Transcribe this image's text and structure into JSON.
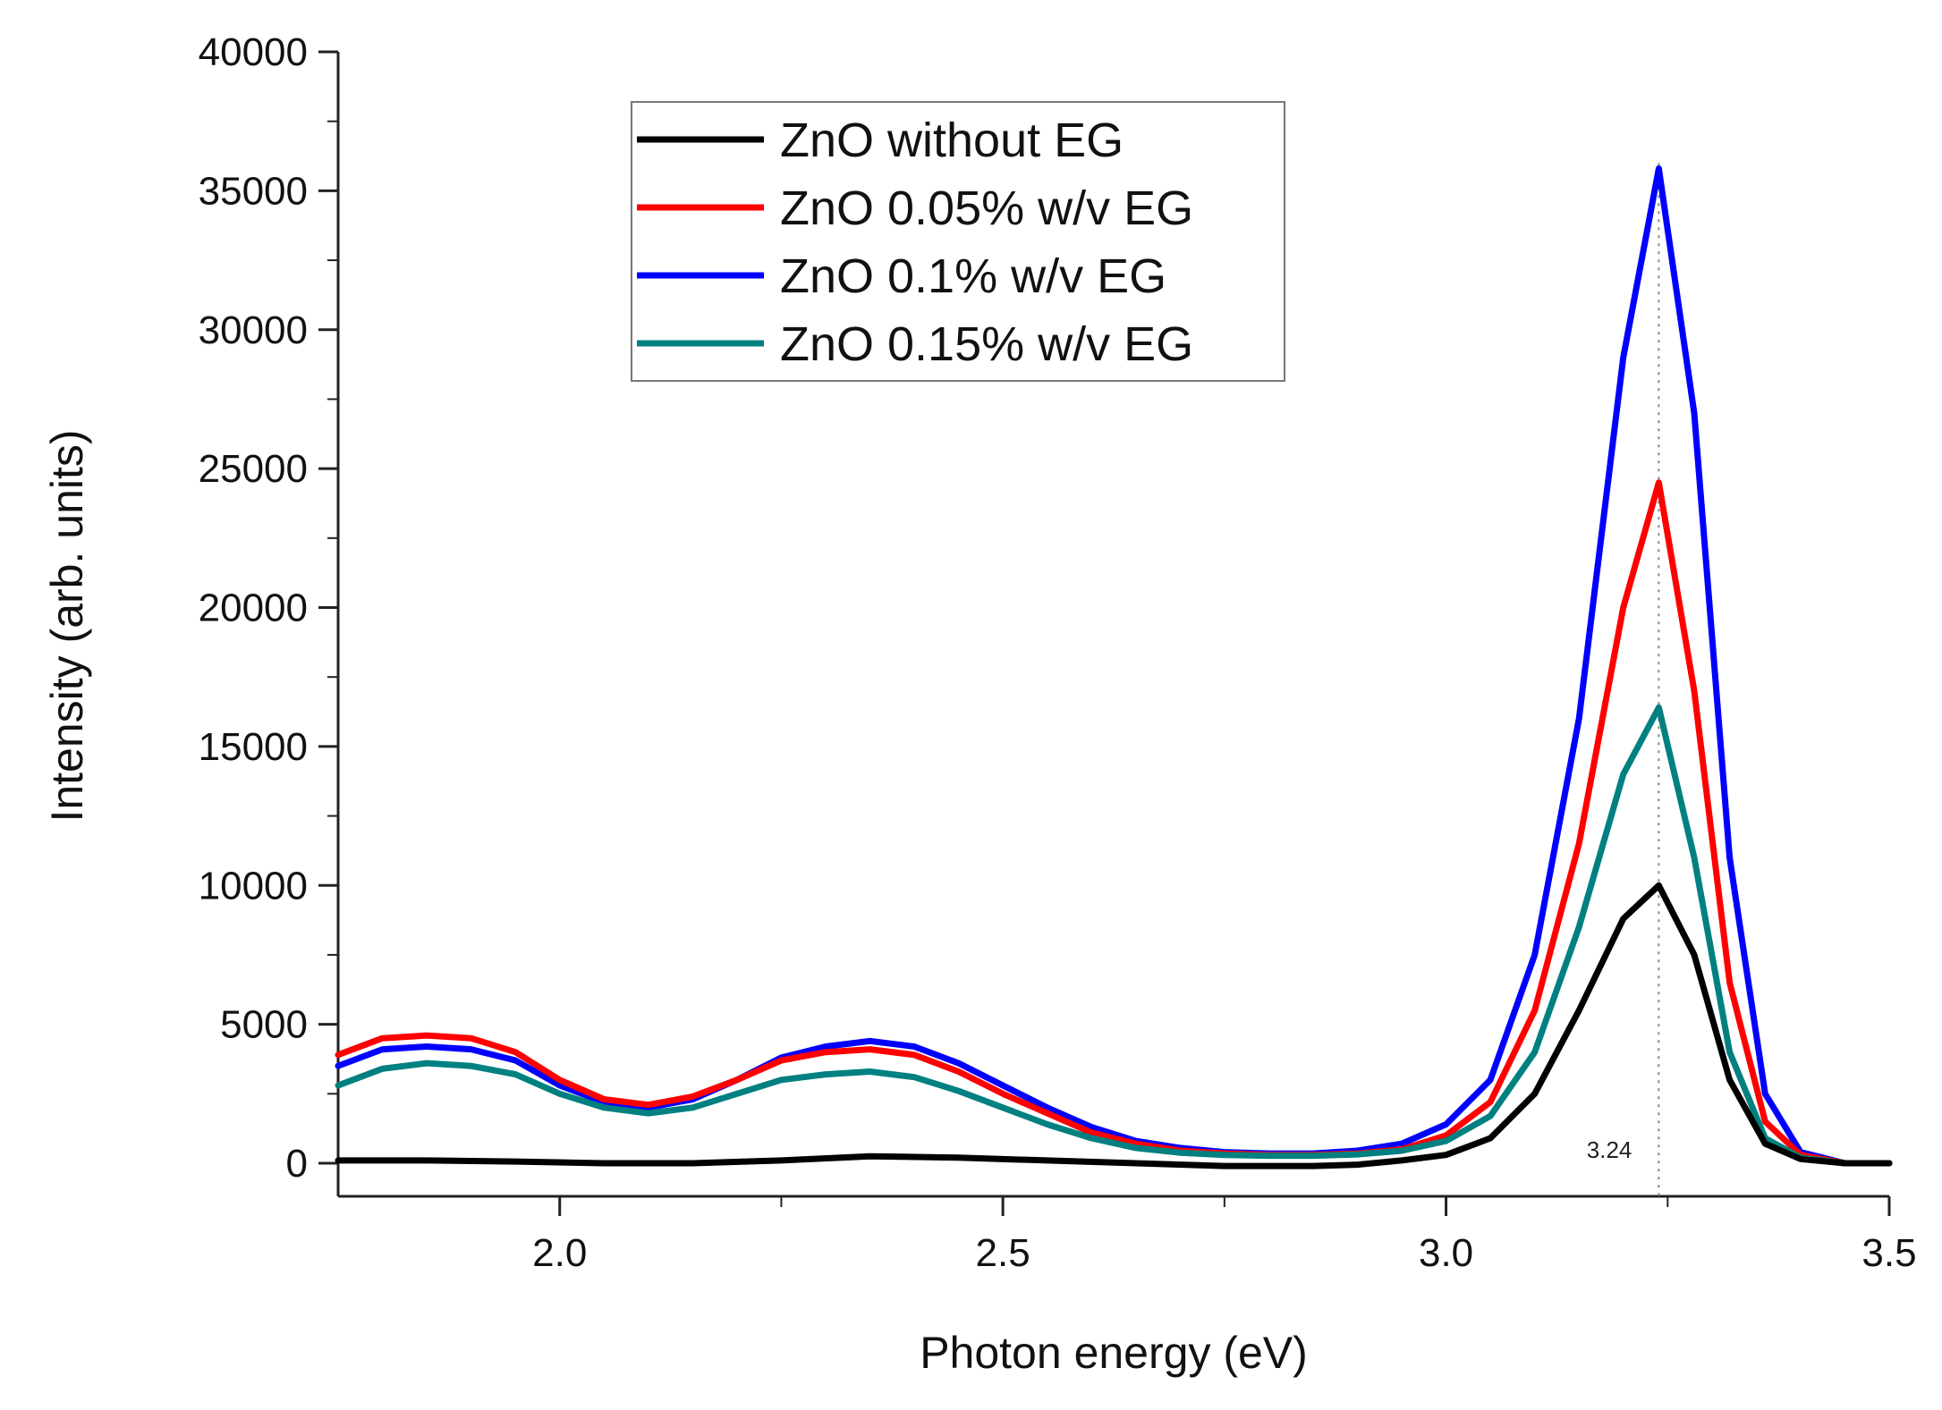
{
  "chart_data": {
    "type": "line",
    "title": "",
    "xlabel": "Photon energy (eV)",
    "ylabel": "Intensity (arb. units)",
    "xlim": [
      1.75,
      3.5
    ],
    "ylim": [
      -1000,
      40000
    ],
    "x_ticks": [
      2.0,
      2.5,
      3.0,
      3.5
    ],
    "x_tick_labels": [
      "2.0",
      "2.5",
      "3.0",
      "3.5"
    ],
    "y_ticks": [
      0,
      5000,
      10000,
      15000,
      20000,
      25000,
      30000,
      35000,
      40000
    ],
    "y_tick_labels": [
      "0",
      "5000",
      "10000",
      "15000",
      "20000",
      "25000",
      "30000",
      "35000",
      "40000"
    ],
    "grid": false,
    "legend_position": "top-center",
    "annotation": {
      "label": "3.24",
      "x": 3.24
    },
    "series": [
      {
        "name": "ZnO without EG",
        "color": "#000000",
        "x": [
          1.75,
          1.85,
          1.95,
          2.05,
          2.15,
          2.25,
          2.35,
          2.45,
          2.55,
          2.65,
          2.75,
          2.85,
          2.9,
          2.95,
          3.0,
          3.05,
          3.1,
          3.15,
          3.2,
          3.24,
          3.28,
          3.32,
          3.36,
          3.4,
          3.45,
          3.5
        ],
        "y": [
          100,
          100,
          60,
          0,
          0,
          100,
          250,
          200,
          100,
          0,
          -100,
          -100,
          -50,
          100,
          300,
          900,
          2500,
          5500,
          8800,
          10000,
          7500,
          3000,
          700,
          150,
          0,
          0
        ]
      },
      {
        "name": "ZnO 0.05%  w/v EG",
        "color": "#ff0000",
        "x": [
          1.75,
          1.8,
          1.85,
          1.9,
          1.95,
          2.0,
          2.05,
          2.1,
          2.15,
          2.2,
          2.25,
          2.3,
          2.35,
          2.4,
          2.45,
          2.5,
          2.55,
          2.6,
          2.65,
          2.7,
          2.75,
          2.8,
          2.85,
          2.9,
          2.95,
          3.0,
          3.05,
          3.1,
          3.15,
          3.2,
          3.24,
          3.28,
          3.32,
          3.36,
          3.4,
          3.45,
          3.5
        ],
        "y": [
          3900,
          4500,
          4600,
          4500,
          4000,
          3000,
          2300,
          2100,
          2400,
          3000,
          3700,
          4000,
          4100,
          3900,
          3300,
          2500,
          1800,
          1100,
          700,
          450,
          350,
          300,
          300,
          350,
          500,
          1000,
          2200,
          5500,
          11500,
          20000,
          24500,
          17000,
          6500,
          1500,
          300,
          0,
          0
        ]
      },
      {
        "name": "ZnO 0.1% w/v EG",
        "color": "#0000ff",
        "x": [
          1.75,
          1.8,
          1.85,
          1.9,
          1.95,
          2.0,
          2.05,
          2.1,
          2.15,
          2.2,
          2.25,
          2.3,
          2.35,
          2.4,
          2.45,
          2.5,
          2.55,
          2.6,
          2.65,
          2.7,
          2.75,
          2.8,
          2.85,
          2.9,
          2.95,
          3.0,
          3.05,
          3.1,
          3.15,
          3.2,
          3.24,
          3.28,
          3.32,
          3.36,
          3.4,
          3.45,
          3.5
        ],
        "y": [
          3500,
          4100,
          4200,
          4100,
          3700,
          2800,
          2200,
          2000,
          2300,
          3000,
          3800,
          4200,
          4400,
          4200,
          3600,
          2800,
          2000,
          1300,
          800,
          550,
          400,
          350,
          350,
          450,
          700,
          1400,
          3000,
          7500,
          16000,
          29000,
          35800,
          27000,
          11000,
          2500,
          400,
          0,
          0
        ]
      },
      {
        "name": "ZnO 0.15%  w/v EG",
        "color": "#008080",
        "x": [
          1.75,
          1.8,
          1.85,
          1.9,
          1.95,
          2.0,
          2.05,
          2.1,
          2.15,
          2.2,
          2.25,
          2.3,
          2.35,
          2.4,
          2.45,
          2.5,
          2.55,
          2.6,
          2.65,
          2.7,
          2.75,
          2.8,
          2.85,
          2.9,
          2.95,
          3.0,
          3.05,
          3.1,
          3.15,
          3.2,
          3.24,
          3.28,
          3.32,
          3.36,
          3.4,
          3.45,
          3.5
        ],
        "y": [
          2800,
          3400,
          3600,
          3500,
          3200,
          2500,
          2000,
          1800,
          2000,
          2500,
          3000,
          3200,
          3300,
          3100,
          2600,
          2000,
          1400,
          900,
          550,
          380,
          300,
          270,
          270,
          320,
          450,
          800,
          1700,
          4000,
          8500,
          14000,
          16400,
          11000,
          4000,
          900,
          200,
          0,
          0
        ]
      }
    ]
  }
}
